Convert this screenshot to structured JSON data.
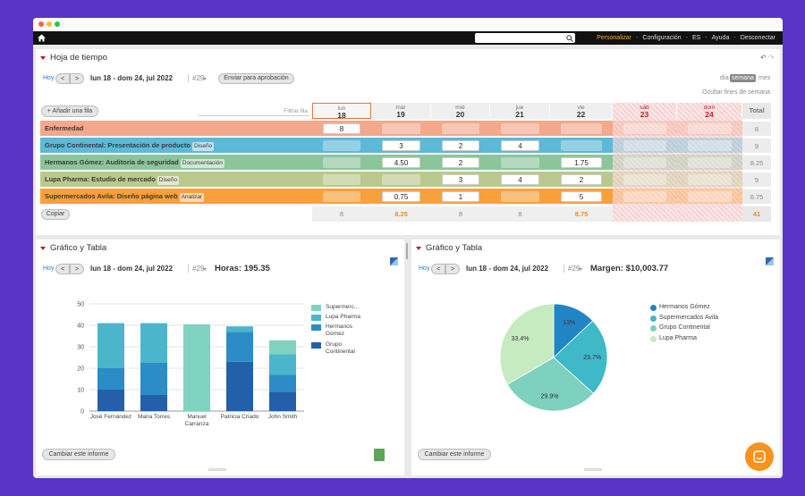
{
  "nav": {
    "links": [
      "Personalizar",
      "Configuración",
      "ES",
      "Ayuda",
      "Desconectar"
    ],
    "separator": "-"
  },
  "timesheet": {
    "title": "Hoja de tiempo",
    "today": "Hoy",
    "prev": "<",
    "next": ">",
    "range": "lun 18 - dom 24, jul 2022",
    "week": "#29",
    "submit": "Enviar para aprobación",
    "views": [
      "día",
      "semana",
      "mes"
    ],
    "hide_weekends": "Ocultar fines de semana",
    "add_row": "+ Añadir una fila",
    "filter": "Filtrar fila",
    "copy": "Copiar",
    "total_label": "Total",
    "days": [
      {
        "name": "lun",
        "num": "18"
      },
      {
        "name": "mar",
        "num": "19"
      },
      {
        "name": "mié",
        "num": "20"
      },
      {
        "name": "jue",
        "num": "21"
      },
      {
        "name": "vie",
        "num": "22"
      },
      {
        "name": "sáb",
        "num": "23"
      },
      {
        "name": "dom",
        "num": "24"
      }
    ],
    "rows": [
      {
        "name": "Enfermedad",
        "color": "#f4a88c",
        "cells": [
          "8",
          null,
          null,
          null,
          null,
          null,
          null
        ],
        "total": "8"
      },
      {
        "name": "Grupo Continental: Presentación de producto",
        "tag": "Diseño",
        "color": "#5db9d8",
        "cells": [
          null,
          "3",
          "2",
          "4",
          null,
          null,
          null
        ],
        "total": "9"
      },
      {
        "name": "Hermanos Gómez: Auditoría de seguridad",
        "tag": "Documentación",
        "color": "#8dc59b",
        "cells": [
          null,
          "4.50",
          "2",
          null,
          "1.75",
          null,
          null
        ],
        "total": "8.25"
      },
      {
        "name": "Lupa Pharma: Estudio de mercado",
        "tag": "Diseño",
        "color": "#b9c98d",
        "cells": [
          null,
          null,
          "3",
          "4",
          "2",
          null,
          null
        ],
        "total": "9"
      },
      {
        "name": "Supermercados Avila: Diseño página web",
        "tag": "Analizar",
        "color": "#f8a03a",
        "cells": [
          null,
          "0.75",
          "1",
          null,
          "5",
          null,
          null
        ],
        "total": "6.75"
      }
    ],
    "totals": [
      "8",
      "8.25",
      "8",
      "8",
      "8.75",
      null,
      null
    ],
    "grand_total": "41"
  },
  "panels": [
    {
      "title": "Gráfico y Tabla",
      "today": "Hoy",
      "prev": "<",
      "next": ">",
      "range": "lun 18 - dom 24, jul 2022",
      "week": "#29",
      "metric": "Horas: 195.35",
      "change": "Cambiar este informe",
      "chart": {
        "type": "bar",
        "categories": [
          "José Fernández",
          "Maria Torres",
          "Manuel Carranza",
          "Patricia Criado",
          "John Smith"
        ],
        "series": [
          {
            "name": "Grupo Continental",
            "color": "#2460a9",
            "values": [
              10,
              7.5,
              null,
              23,
              9
            ]
          },
          {
            "name": "Hermanos Gómez",
            "color": "#2b8cc6",
            "values": [
              10,
              15,
              null,
              14,
              8
            ]
          },
          {
            "name": "Lupa Pharma",
            "color": "#4bb6cb",
            "values": [
              21,
              18.5,
              null,
              2.5,
              9.5
            ]
          },
          {
            "name": "Supermerc...",
            "color": "#80d2c0",
            "values": [
              null,
              null,
              40.5,
              null,
              6.5
            ]
          }
        ],
        "ylim": [
          0,
          50
        ],
        "yticks": [
          0,
          10,
          20,
          30,
          40,
          50
        ],
        "grid": true
      }
    },
    {
      "title": "Gráfico y Tabla",
      "today": "Hoy",
      "prev": "<",
      "next": ">",
      "range": "lun 18 - dom 24, jul 2022",
      "week": "#29",
      "metric": "Margen: $10,003.77",
      "change": "Cambiar este informe",
      "chart": {
        "type": "pie",
        "categories": [
          "Hermanos Gómez",
          "Supermercados Avila",
          "Grupo Continental",
          "Lupa Pharma"
        ],
        "values": [
          13,
          23.7,
          29.9,
          33.4
        ],
        "value_labels": [
          "13%",
          "23.7%",
          "29.9%",
          "33.4%"
        ],
        "colors": [
          "#2185c5",
          "#3fb8c8",
          "#7ed0bf",
          "#c6ebc0"
        ]
      }
    }
  ]
}
